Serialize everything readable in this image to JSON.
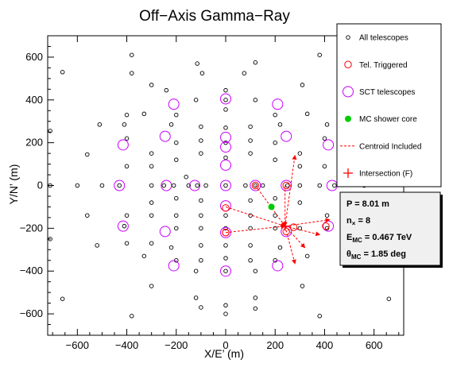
{
  "chart_data": {
    "type": "scatter",
    "title": "Off−Axis Gamma−Ray",
    "xlabel": "X/E’ (m)",
    "ylabel": "Y/N’ (m)",
    "xlim": [
      -720,
      720
    ],
    "ylim": [
      -700,
      700
    ],
    "x_ticks": [
      -600,
      -400,
      -200,
      0,
      200,
      400,
      600
    ],
    "y_ticks": [
      -600,
      -400,
      -200,
      0,
      200,
      400,
      600
    ],
    "x_tick_labels": [
      "−600",
      "−400",
      "−200",
      "0",
      "200",
      "400",
      "600"
    ],
    "y_tick_labels": [
      "−600",
      "−400",
      "−200",
      "0",
      "200",
      "400",
      "600"
    ],
    "grid": false,
    "legend_position": "top-right",
    "legend": [
      {
        "label": "All telescopes",
        "marker": "open-circle-black"
      },
      {
        "label": "Tel. Triggered",
        "marker": "open-circle-red"
      },
      {
        "label": "SCT telescopes",
        "marker": "open-circle-purple"
      },
      {
        "label": "MC shower core",
        "marker": "filled-circle-green"
      },
      {
        "label": "Centroid Included",
        "marker": "dashed-line-red"
      },
      {
        "label": "Intersection (F)",
        "marker": "plus-red"
      }
    ],
    "info_box": {
      "position": "bottom-right",
      "lines": [
        {
          "main": "P = 8.01 m",
          "sub": ""
        },
        {
          "main": "n",
          "sub": "×",
          "rest": " = 8"
        },
        {
          "main": "E",
          "sub": "MC",
          "rest": " = 0.467 TeV"
        },
        {
          "main": "θ",
          "sub": "MC",
          "rest": " = 1.85 deg"
        }
      ]
    },
    "colors": {
      "all_telescopes": "#000000",
      "triggered": "#ff0000",
      "sct": "#cc00ff",
      "shower_core": "#00cc00",
      "centroid": "#ff0000"
    },
    "all_telescopes": [
      [
        -380,
        610
      ],
      [
        120,
        575
      ],
      [
        380,
        610
      ],
      [
        -660,
        530
      ],
      [
        -115,
        570
      ],
      [
        -95,
        525
      ],
      [
        75,
        525
      ],
      [
        -380,
        525
      ],
      [
        660,
        520
      ],
      [
        -300,
        470
      ],
      [
        310,
        470
      ],
      [
        -240,
        445
      ],
      [
        0,
        445
      ],
      [
        -120,
        400
      ],
      [
        120,
        400
      ],
      [
        0,
        400
      ],
      [
        -400,
        330
      ],
      [
        -330,
        335
      ],
      [
        330,
        335
      ],
      [
        -200,
        330
      ],
      [
        200,
        330
      ],
      [
        0,
        355
      ],
      [
        -510,
        285
      ],
      [
        -410,
        285
      ],
      [
        410,
        285
      ],
      [
        -220,
        285
      ],
      [
        220,
        285
      ],
      [
        -100,
        275
      ],
      [
        100,
        275
      ],
      [
        0,
        270
      ],
      [
        -400,
        220
      ],
      [
        400,
        220
      ],
      [
        -200,
        200
      ],
      [
        200,
        200
      ],
      [
        -100,
        210
      ],
      [
        100,
        210
      ],
      [
        0,
        200
      ],
      [
        -710,
        255
      ],
      [
        -560,
        145
      ],
      [
        -300,
        150
      ],
      [
        300,
        150
      ],
      [
        -100,
        150
      ],
      [
        100,
        150
      ],
      [
        0,
        130
      ],
      [
        -200,
        120
      ],
      [
        200,
        120
      ],
      [
        -300,
        90
      ],
      [
        300,
        90
      ],
      [
        -400,
        90
      ],
      [
        400,
        90
      ],
      [
        -710,
        0
      ],
      [
        -600,
        0
      ],
      [
        -500,
        0
      ],
      [
        -430,
        0
      ],
      [
        -300,
        0
      ],
      [
        -250,
        0
      ],
      [
        -150,
        0
      ],
      [
        -115,
        0
      ],
      [
        -210,
        0
      ],
      [
        -80,
        0
      ],
      [
        0,
        0
      ],
      [
        80,
        0
      ],
      [
        120,
        0
      ],
      [
        150,
        0
      ],
      [
        -160,
        40
      ],
      [
        250,
        0
      ],
      [
        300,
        0
      ],
      [
        380,
        0
      ],
      [
        440,
        0
      ],
      [
        560,
        0
      ],
      [
        -200,
        -60
      ],
      [
        -300,
        -80
      ],
      [
        -100,
        -70
      ],
      [
        100,
        -70
      ],
      [
        300,
        -80
      ],
      [
        200,
        -60
      ],
      [
        -560,
        -140
      ],
      [
        -400,
        -140
      ],
      [
        -300,
        -140
      ],
      [
        -200,
        -140
      ],
      [
        0,
        -140
      ],
      [
        -100,
        -140
      ],
      [
        100,
        -140
      ],
      [
        200,
        -140
      ],
      [
        410,
        -140
      ],
      [
        -410,
        -190
      ],
      [
        -710,
        -250
      ],
      [
        -200,
        -200
      ],
      [
        -100,
        -200
      ],
      [
        0,
        -200
      ],
      [
        100,
        -200
      ],
      [
        200,
        -200
      ],
      [
        300,
        -200
      ],
      [
        410,
        -200
      ],
      [
        -520,
        -280
      ],
      [
        -400,
        -270
      ],
      [
        -300,
        -270
      ],
      [
        -220,
        -290
      ],
      [
        220,
        -290
      ],
      [
        100,
        -280
      ],
      [
        -100,
        -280
      ],
      [
        0,
        -280
      ],
      [
        -330,
        -330
      ],
      [
        330,
        -330
      ],
      [
        -200,
        -350
      ],
      [
        200,
        -350
      ],
      [
        0,
        -340
      ],
      [
        -100,
        -350
      ],
      [
        100,
        -350
      ],
      [
        -120,
        -400
      ],
      [
        120,
        -400
      ],
      [
        0,
        -400
      ],
      [
        -300,
        -470
      ],
      [
        310,
        -470
      ],
      [
        -100,
        -570
      ],
      [
        -120,
        -525
      ],
      [
        120,
        -525
      ],
      [
        -660,
        -530
      ],
      [
        660,
        -530
      ],
      [
        0,
        -560
      ],
      [
        0,
        -600
      ],
      [
        -380,
        -610
      ],
      [
        380,
        -610
      ],
      [
        120,
        -575
      ]
    ],
    "sct_telescopes": [
      [
        -210,
        380
      ],
      [
        210,
        380
      ],
      [
        0,
        405
      ],
      [
        -415,
        190
      ],
      [
        -245,
        230
      ],
      [
        245,
        230
      ],
      [
        0,
        225
      ],
      [
        415,
        190
      ],
      [
        0,
        180
      ],
      [
        0,
        95
      ],
      [
        -430,
        0
      ],
      [
        -240,
        0
      ],
      [
        -125,
        0
      ],
      [
        0,
        0
      ],
      [
        120,
        0
      ],
      [
        245,
        0
      ],
      [
        430,
        0
      ],
      [
        0,
        -95
      ],
      [
        -415,
        -190
      ],
      [
        -245,
        -215
      ],
      [
        0,
        -220
      ],
      [
        245,
        -215
      ],
      [
        415,
        -190
      ],
      [
        -210,
        -375
      ],
      [
        210,
        -375
      ],
      [
        0,
        -400
      ]
    ],
    "triggered": [
      [
        0,
        -105
      ],
      [
        0,
        -220
      ],
      [
        120,
        0
      ],
      [
        245,
        0
      ],
      [
        245,
        -215
      ],
      [
        405,
        -190
      ],
      [
        275,
        -195
      ],
      [
        0,
        -220
      ]
    ],
    "shower_core": [
      185,
      -100
    ],
    "intersection": [
      240,
      -190
    ],
    "centroid_lines": [
      {
        "from": [
          0,
          -100
        ],
        "to": [
          240,
          -190
        ]
      },
      {
        "from": [
          0,
          -220
        ],
        "to": [
          240,
          -190
        ]
      },
      {
        "from": [
          120,
          0
        ],
        "to": [
          240,
          -190
        ]
      },
      {
        "from": [
          240,
          0
        ],
        "to": [
          240,
          -190
        ]
      },
      {
        "from": [
          240,
          -190
        ],
        "to": [
          280,
          140
        ]
      },
      {
        "from": [
          240,
          -190
        ],
        "to": [
          420,
          -160
        ]
      },
      {
        "from": [
          240,
          -190
        ],
        "to": [
          380,
          -230
        ]
      },
      {
        "from": [
          240,
          -190
        ],
        "to": [
          320,
          -290
        ]
      },
      {
        "from": [
          240,
          -190
        ],
        "to": [
          280,
          -365
        ]
      }
    ]
  }
}
